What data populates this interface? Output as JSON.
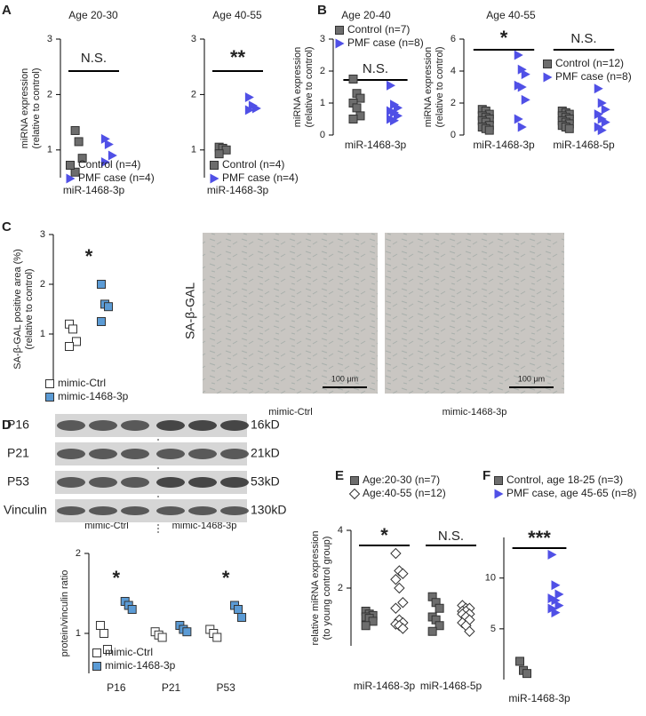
{
  "panel_labels": [
    "A",
    "B",
    "C",
    "D",
    "E",
    "F"
  ],
  "chart_data": [
    {
      "type": "dotplot",
      "title": "Age 20-30",
      "ylabel": [
        "miRNA expression",
        "(relative to control)"
      ],
      "categories": [
        "miR-1468-3p"
      ],
      "ylim": [
        0.5,
        3
      ],
      "yticks": [
        1,
        2,
        3
      ],
      "annotations": [
        "N.S."
      ],
      "series": [
        {
          "name": "Control (n=4)",
          "color": "#6d6d6d",
          "marker": "square",
          "values": [
            [
              1.35,
              1.15,
              0.85,
              0.6
            ]
          ]
        },
        {
          "name": "PMF case (n=4)",
          "color": "#5050e6",
          "marker": "triangle",
          "values": [
            [
              1.2,
              1.1,
              0.9,
              0.78
            ]
          ]
        }
      ]
    },
    {
      "type": "dotplot",
      "title": "Age 40-55",
      "categories": [
        "miR-1468-3p"
      ],
      "ylim": [
        0.5,
        3
      ],
      "yticks": [
        1,
        2,
        3
      ],
      "annotations": [
        "**"
      ],
      "series": [
        {
          "name": "Control (n=4)",
          "color": "#6d6d6d",
          "marker": "square",
          "values": [
            [
              1.05,
              1.03,
              1.0,
              0.93
            ]
          ]
        },
        {
          "name": "PMF case (n=4)",
          "color": "#5050e6",
          "marker": "triangle",
          "values": [
            [
              1.95,
              1.8,
              1.75,
              1.72
            ]
          ]
        }
      ]
    },
    {
      "type": "dotplot",
      "title": "Age 20-40",
      "ylabel": [
        "miRNA expression",
        "(relative to control)"
      ],
      "categories": [
        "miR-1468-3p"
      ],
      "ylim": [
        0,
        3
      ],
      "yticks": [
        0,
        1,
        2,
        3
      ],
      "annotations": [
        "N.S."
      ],
      "series": [
        {
          "name": "Control (n=7)",
          "color": "#6d6d6d",
          "marker": "square",
          "values": [
            [
              1.75,
              1.3,
              1.15,
              1.0,
              0.85,
              0.6,
              0.5
            ]
          ]
        },
        {
          "name": "PMF case (n=8)",
          "color": "#5050e6",
          "marker": "triangle",
          "values": [
            [
              1.55,
              0.95,
              0.85,
              0.75,
              0.7,
              0.6,
              0.5,
              0.45
            ]
          ]
        }
      ]
    },
    {
      "type": "dotplot",
      "title": "Age 40-55",
      "ylabel": [
        "miRNA expression",
        "(relative to control)"
      ],
      "categories": [
        "miR-1468-3p",
        "miR-1468-5p"
      ],
      "ylim": [
        0,
        6
      ],
      "yticks": [
        0,
        2,
        4,
        6
      ],
      "annotations": [
        "*",
        "N.S."
      ],
      "series": [
        {
          "name": "Control (n=12)",
          "color": "#6d6d6d",
          "marker": "square",
          "values": [
            [
              1.6,
              1.5,
              1.3,
              1.2,
              1.1,
              1.0,
              0.9,
              0.8,
              0.6,
              0.5,
              0.4,
              0.3
            ],
            [
              1.5,
              1.4,
              1.3,
              1.2,
              1.1,
              1.0,
              0.9,
              0.8,
              0.7,
              0.6,
              0.5,
              0.4
            ]
          ]
        },
        {
          "name": "PMF case (n=8)",
          "color": "#5050e6",
          "marker": "triangle",
          "values": [
            [
              5.0,
              4.1,
              3.8,
              3.1,
              3.0,
              2.2,
              1.0,
              0.5
            ],
            [
              2.9,
              2.0,
              1.6,
              1.3,
              1.0,
              0.8,
              0.5,
              0.3
            ]
          ]
        }
      ]
    },
    {
      "type": "dotplot",
      "ylabel": [
        "SA-β-GAL positive area (%)",
        "(relative to control)"
      ],
      "categories": [
        null
      ],
      "ylim": [
        0,
        3
      ],
      "yticks": [
        1,
        2,
        3
      ],
      "annotations": [
        "*"
      ],
      "series": [
        {
          "name": "mimic-Ctrl",
          "color": "#ffffff",
          "marker": "square",
          "values": [
            [
              1.2,
              1.1,
              0.85,
              0.75
            ]
          ]
        },
        {
          "name": "mimic-1468-3p",
          "color": "#5b9bd5",
          "marker": "square",
          "values": [
            [
              2.0,
              1.6,
              1.55,
              1.25
            ]
          ]
        }
      ]
    },
    {
      "type": "dotplot",
      "ylabel": [
        "protein/vinculin ratio"
      ],
      "categories": [
        "P16",
        "P21",
        "P53"
      ],
      "ylim": [
        0.5,
        2
      ],
      "yticks": [
        1,
        2
      ],
      "annotations": [
        "*",
        null,
        "*"
      ],
      "series": [
        {
          "name": "mimic-Ctrl",
          "color": "#ffffff",
          "marker": "square",
          "values": [
            [
              1.1,
              1.0,
              0.8
            ],
            [
              1.02,
              0.98,
              0.95
            ],
            [
              1.05,
              1.0,
              0.95
            ]
          ]
        },
        {
          "name": "mimic-1468-3p",
          "color": "#5b9bd5",
          "marker": "square",
          "values": [
            [
              1.4,
              1.35,
              1.3
            ],
            [
              1.1,
              1.05,
              1.02
            ],
            [
              1.35,
              1.3,
              1.2
            ]
          ]
        }
      ]
    },
    {
      "type": "dotplot",
      "ylabel": [
        "relative miRNA expression",
        "(to young control group)"
      ],
      "categories": [
        "miR-1468-3p",
        "miR-1468-5p"
      ],
      "ylim": [
        0,
        4
      ],
      "yticks": [
        2,
        4
      ],
      "annotations": [
        "*",
        "N.S."
      ],
      "series": [
        {
          "name": "Age:20-30 (n=7)",
          "color": "#6d6d6d",
          "marker": "square",
          "values": [
            [
              1.2,
              1.1,
              1.05,
              1.0,
              0.95,
              0.85,
              0.7
            ],
            [
              1.7,
              1.5,
              1.3,
              1.0,
              0.9,
              0.7,
              0.5
            ]
          ]
        },
        {
          "name": "Age:40-55 (n=12)",
          "color": "#ffffff",
          "marker": "diamond",
          "values": [
            [
              3.2,
              2.6,
              2.5,
              2.3,
              2.0,
              1.5,
              1.3,
              0.9,
              0.8,
              0.75,
              0.7,
              0.6
            ],
            [
              1.4,
              1.3,
              1.3,
              1.2,
              1.2,
              1.1,
              1.1,
              1.0,
              0.9,
              0.8,
              0.7,
              0.5
            ]
          ]
        }
      ]
    },
    {
      "type": "dotplot",
      "categories": [
        "miR-1468-3p"
      ],
      "ylim": [
        0,
        14
      ],
      "yticks": [
        5,
        10
      ],
      "annotations": [
        "***"
      ],
      "series": [
        {
          "name": "Control, age 18-25 (n=3)",
          "color": "#6d6d6d",
          "marker": "square",
          "values": [
            [
              1.8,
              0.9,
              0.6
            ]
          ]
        },
        {
          "name": "PMF case, age 45-65 (n=8)",
          "color": "#5050e6",
          "marker": "triangle",
          "values": [
            [
              12.3,
              9.3,
              8.4,
              8.0,
              7.8,
              7.3,
              7.0,
              6.6
            ]
          ]
        }
      ]
    }
  ],
  "micrographs": {
    "stain": "SA-β-GAL",
    "labels": [
      "mimic-Ctrl",
      "mimic-1468-3p"
    ],
    "scale_bar": "100 μm"
  },
  "western_blot": {
    "proteins": [
      "P16",
      "P21",
      "P53",
      "Vinculin"
    ],
    "sizes": [
      "16kD",
      "21kD",
      "53kD",
      "130kD"
    ],
    "groups": [
      "mimic-Ctrl",
      "mimic-1468-3p"
    ]
  }
}
